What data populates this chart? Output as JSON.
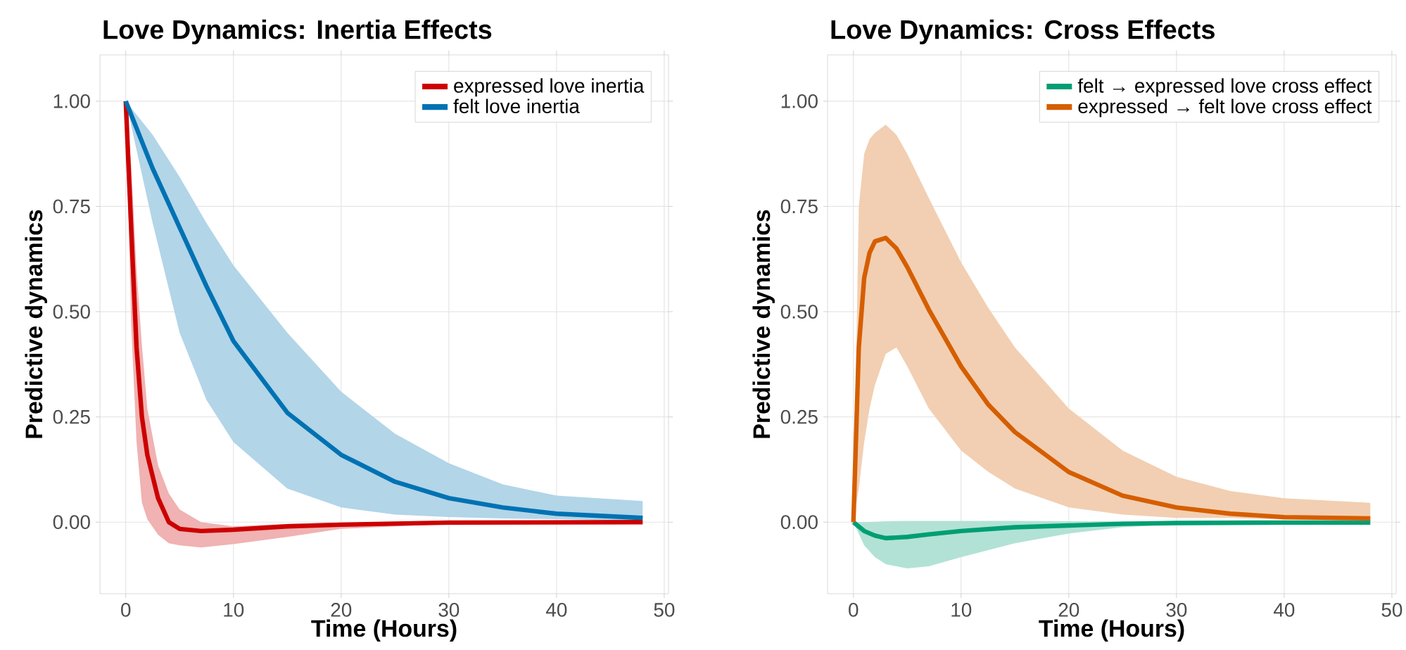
{
  "chart_data": [
    {
      "type": "line",
      "title": "Love Dynamics: Inertia Effects",
      "xlabel": "Time (Hours)",
      "ylabel": "Predictive dynamics",
      "xlim": [
        -2.4,
        50.4
      ],
      "ylim": [
        -0.17,
        1.11
      ],
      "xticks": [
        0,
        10,
        20,
        30,
        40,
        50
      ],
      "yticks": [
        {
          "value": 0,
          "label": "0.00"
        },
        {
          "value": 0.25,
          "label": "0.25"
        },
        {
          "value": 0.5,
          "label": "0.50"
        },
        {
          "value": 0.75,
          "label": "0.75"
        },
        {
          "value": 1,
          "label": "1.00"
        }
      ],
      "grid": true,
      "legend": "top right",
      "series": [
        {
          "name": "expressed love inertia",
          "color": "#cc0000",
          "x": [
            0,
            0.5,
            1,
            1.5,
            2,
            3,
            4,
            5,
            7,
            10,
            15,
            20,
            30,
            48
          ],
          "values": [
            1.0,
            0.7,
            0.415,
            0.25,
            0.16,
            0.057,
            0.0,
            -0.016,
            -0.021,
            -0.018,
            -0.01,
            -0.006,
            -0.001,
            0.0
          ],
          "lower": [
            1.0,
            0.47,
            0.19,
            0.046,
            0.007,
            -0.03,
            -0.05,
            -0.055,
            -0.06,
            -0.052,
            -0.035,
            -0.016,
            -0.004,
            -0.001
          ],
          "upper": [
            1.0,
            0.85,
            0.6,
            0.42,
            0.27,
            0.135,
            0.068,
            0.03,
            0.0,
            -0.01,
            -0.004,
            -0.001,
            0.0,
            0.0
          ]
        },
        {
          "name": "felt love inertia",
          "color": "#0072b2",
          "x": [
            0,
            2.5,
            5,
            7.5,
            10,
            15,
            20,
            25,
            30,
            35,
            40,
            48
          ],
          "values": [
            1.0,
            0.84,
            0.7,
            0.56,
            0.43,
            0.26,
            0.16,
            0.096,
            0.057,
            0.035,
            0.02,
            0.01
          ],
          "lower": [
            1.0,
            0.71,
            0.45,
            0.29,
            0.19,
            0.08,
            0.035,
            0.018,
            0.012,
            0.009,
            0.007,
            0.003
          ],
          "upper": [
            1.0,
            0.92,
            0.82,
            0.71,
            0.61,
            0.45,
            0.31,
            0.21,
            0.14,
            0.09,
            0.063,
            0.05
          ]
        }
      ]
    },
    {
      "type": "line",
      "title": "Love Dynamics: Cross Effects",
      "xlabel": "Time (Hours)",
      "ylabel": "Predictive dynamics",
      "xlim": [
        -2.4,
        50.4
      ],
      "ylim": [
        -0.17,
        1.11
      ],
      "xticks": [
        0,
        10,
        20,
        30,
        40,
        50
      ],
      "yticks": [
        {
          "value": 0,
          "label": "0.00"
        },
        {
          "value": 0.25,
          "label": "0.25"
        },
        {
          "value": 0.5,
          "label": "0.50"
        },
        {
          "value": 0.75,
          "label": "0.75"
        },
        {
          "value": 1,
          "label": "1.00"
        }
      ],
      "grid": true,
      "legend": "top right",
      "series": [
        {
          "name": "felt → expressed love cross effect",
          "color": "#009e73",
          "x": [
            0,
            1,
            2,
            3,
            5,
            7,
            10,
            15,
            20,
            25,
            30,
            40,
            48
          ],
          "values": [
            0.0,
            -0.021,
            -0.032,
            -0.038,
            -0.035,
            -0.029,
            -0.021,
            -0.012,
            -0.008,
            -0.004,
            -0.002,
            -0.001,
            -0.001
          ],
          "lower": [
            0.0,
            -0.055,
            -0.083,
            -0.1,
            -0.11,
            -0.105,
            -0.083,
            -0.05,
            -0.027,
            -0.012,
            -0.005,
            -0.002,
            -0.001
          ],
          "upper": [
            0.0,
            0.0,
            0.001,
            0.002,
            0.003,
            0.003,
            0.003,
            0.003,
            0.002,
            0.002,
            0.001,
            0.001,
            0.0
          ]
        },
        {
          "name": "expressed → felt love cross effect",
          "color": "#d55e00",
          "x": [
            0,
            0.5,
            1,
            1.5,
            2,
            3,
            4,
            5,
            7,
            10,
            12.5,
            15,
            20,
            25,
            30,
            35,
            40,
            48
          ],
          "values": [
            0.0,
            0.415,
            0.58,
            0.64,
            0.667,
            0.675,
            0.65,
            0.606,
            0.505,
            0.37,
            0.28,
            0.214,
            0.119,
            0.063,
            0.035,
            0.02,
            0.012,
            0.009
          ],
          "lower": [
            0.0,
            0.08,
            0.19,
            0.27,
            0.326,
            0.4,
            0.415,
            0.37,
            0.27,
            0.17,
            0.12,
            0.08,
            0.035,
            0.018,
            0.01,
            0.01,
            0.006,
            0.003
          ],
          "upper": [
            0.0,
            0.75,
            0.875,
            0.91,
            0.925,
            0.944,
            0.92,
            0.875,
            0.77,
            0.617,
            0.51,
            0.415,
            0.27,
            0.17,
            0.108,
            0.074,
            0.057,
            0.046
          ]
        }
      ]
    }
  ]
}
